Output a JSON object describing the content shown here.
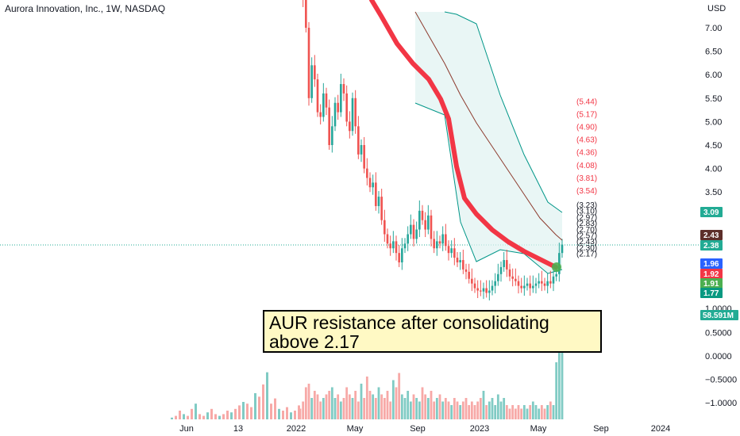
{
  "header": {
    "title": "Aurora Innovation, Inc., 1W, NASDAQ"
  },
  "callout": {
    "text": "AUR resistance after consolidating\nabove 2.17"
  },
  "currency": "USD",
  "price_badges": [
    {
      "label": "3.09",
      "value": 3.09,
      "color": "#22ab94"
    },
    {
      "label": "2.43",
      "value": 2.43,
      "color": "#5d2f2a"
    },
    {
      "label": "2.38",
      "value": 2.38,
      "color": "#22ab94"
    },
    {
      "label": "1.96",
      "value": 1.96,
      "color": "#2962ff"
    },
    {
      "label": "1.92",
      "value": 1.92,
      "color": "#f23645"
    },
    {
      "label": "1.91",
      "value": 1.91,
      "color": "#4caf50"
    },
    {
      "label": "1.77",
      "value": 1.77,
      "color": "#089981"
    }
  ],
  "volume_badge": {
    "label": "58.591M",
    "color": "#22ab94"
  },
  "colors": {
    "up": "#26a69a",
    "down": "#ef5350",
    "vol_up": "#80cbc4",
    "vol_down": "#f7a9a7",
    "ma_red": "#f23645",
    "channel": "#009688",
    "mid": "#8d3b2e",
    "fill": "#e0f2f1"
  },
  "chart_data": {
    "type": "candlestick",
    "title": "Aurora Innovation, Inc., 1W, NASDAQ",
    "price_axis": {
      "ticks": [
        "7.00",
        "6.50",
        "6.00",
        "5.50",
        "5.00",
        "4.50",
        "4.00",
        "3.50",
        "1.0000"
      ],
      "tick_values": [
        7,
        6.5,
        6,
        5.5,
        5,
        4.5,
        4,
        3.5,
        1.0
      ]
    },
    "volume_axis": {
      "ticks": [
        "0.5000",
        "0.0000",
        "−0.5000",
        "−1.0000"
      ],
      "tick_values": [
        0.5,
        0,
        -0.5,
        -1.0
      ]
    },
    "x_ticks": [
      "Jun",
      "13",
      "2022",
      "May",
      "Sep",
      "2023",
      "May",
      "Sep",
      "2024"
    ],
    "levels_red": [
      "(5.44)",
      "(5.17)",
      "(4.90)",
      "(4.63)",
      "(4.36)",
      "(4.08)",
      "(3.81)",
      "(3.54)"
    ],
    "levels_dark": [
      "(3.23)",
      "(3.10)",
      "(2.97)",
      "(2.83)",
      "(2.70)",
      "(2.57)",
      "(2.43)",
      "(2.30)",
      "(2.17)"
    ],
    "levels_red_values": [
      5.44,
      5.17,
      4.9,
      4.63,
      4.36,
      4.08,
      3.81,
      3.54
    ],
    "levels_dark_values": [
      3.23,
      3.1,
      2.97,
      2.83,
      2.7,
      2.57,
      2.43,
      2.3,
      2.17
    ],
    "close": [
      8.2,
      7.6,
      7.0,
      5.5,
      6.2,
      5.9,
      5.2,
      5.1,
      5.6,
      5.3,
      4.5,
      4.9,
      5.4,
      5.2,
      5.8,
      5.6,
      5.0,
      4.8,
      5.5,
      4.9,
      4.3,
      4.5,
      4.0,
      3.8,
      3.6,
      3.7,
      3.2,
      3.4,
      2.9,
      2.6,
      2.4,
      2.3,
      2.45,
      2.2,
      2.0,
      2.3,
      2.4,
      2.6,
      2.8,
      2.5,
      2.7,
      3.1,
      2.9,
      2.7,
      3.0,
      2.5,
      2.3,
      2.45,
      2.4,
      2.6,
      2.35,
      2.2,
      2.3,
      2.1,
      2.0,
      2.05,
      1.85,
      1.8,
      1.65,
      1.55,
      1.45,
      1.4,
      1.38,
      1.45,
      1.35,
      1.4,
      1.5,
      1.6,
      1.75,
      1.9,
      2.05,
      1.85,
      1.7,
      1.65,
      1.6,
      1.5,
      1.45,
      1.5,
      1.55,
      1.45,
      1.5,
      1.55,
      1.6,
      1.55,
      1.5,
      1.6,
      1.55,
      1.7,
      1.75,
      2.2,
      2.38
    ],
    "volume": [
      0.3,
      0.5,
      0.9,
      1.0,
      0.6,
      0.8,
      0.7,
      0.5,
      0.6,
      0.7,
      0.8,
      0.9,
      0.6,
      0.7,
      0.5,
      0.6,
      0.9,
      0.7,
      0.6,
      0.8,
      0.5,
      1.0,
      0.6,
      1.2,
      0.8,
      0.7,
      0.6,
      0.9,
      0.7,
      0.6,
      0.8,
      0.5,
      1.1,
      0.9,
      1.3,
      0.7,
      0.6,
      0.8,
      0.5,
      0.7,
      0.6,
      0.5,
      0.9,
      0.7,
      0.6,
      0.8,
      0.5,
      0.6,
      0.7,
      0.5,
      0.6,
      0.5,
      0.4,
      0.6,
      0.5,
      0.4,
      0.5,
      0.6,
      0.4,
      0.5,
      0.4,
      0.5,
      0.6,
      0.8,
      0.4,
      0.5,
      0.6,
      0.4,
      0.7,
      0.5,
      0.6,
      0.4,
      0.3,
      0.4,
      0.3,
      0.4,
      0.3,
      0.4,
      0.3,
      0.4,
      0.5,
      0.4,
      0.3,
      0.4,
      0.3,
      0.4,
      0.5,
      0.4,
      1.6,
      2.1,
      2.4
    ]
  }
}
